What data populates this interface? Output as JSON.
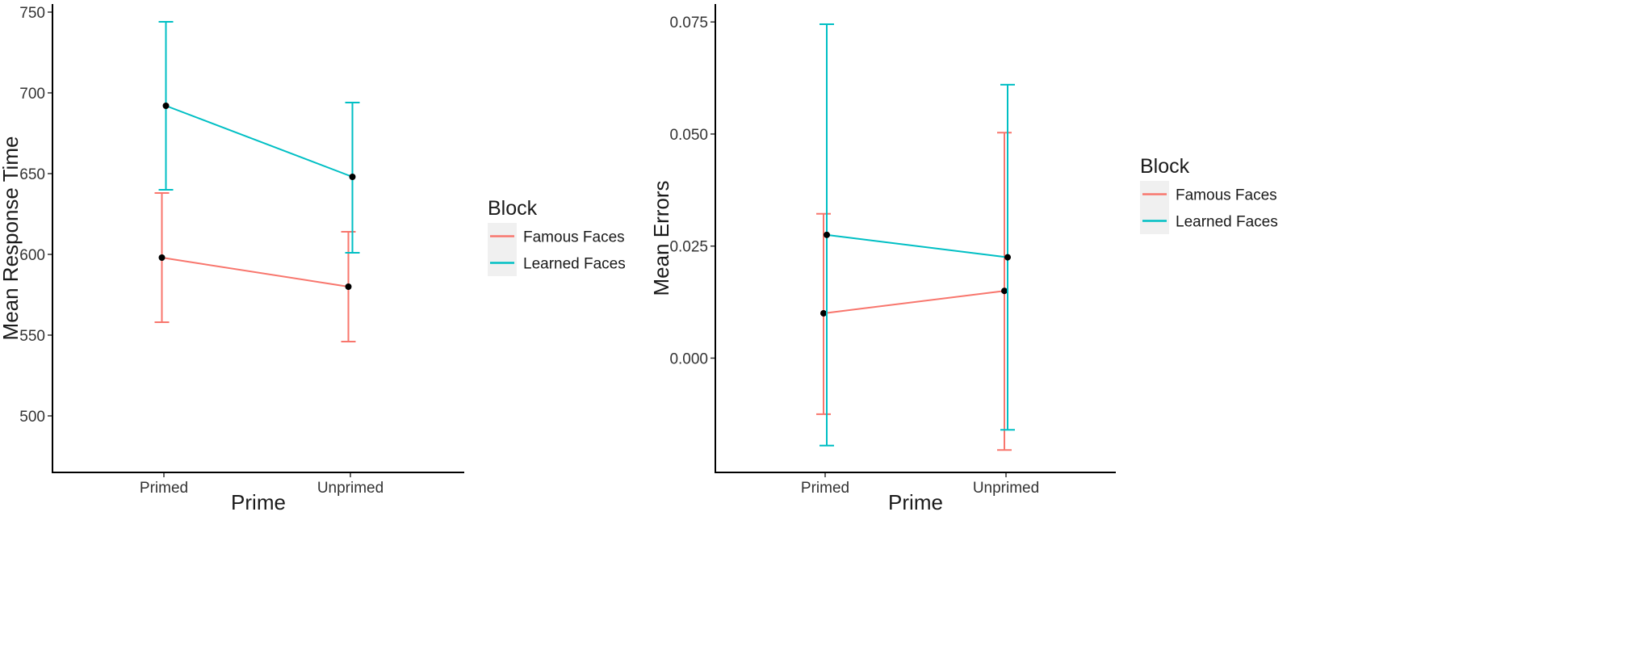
{
  "chart_data": [
    {
      "type": "line",
      "title": "",
      "xlabel": "Prime",
      "ylabel": "Mean Response Time",
      "categories": [
        "Primed",
        "Unprimed"
      ],
      "ylim": [
        465,
        755
      ],
      "yticks": [
        500,
        550,
        600,
        650,
        700,
        750
      ],
      "legend": {
        "title": "Block",
        "position": "right"
      },
      "series": [
        {
          "name": "Famous Faces",
          "color": "#F8766D",
          "values": [
            598,
            580
          ],
          "lower": [
            558,
            546
          ],
          "upper": [
            638,
            614
          ]
        },
        {
          "name": "Learned Faces",
          "color": "#00BFC4",
          "values": [
            692,
            648
          ],
          "lower": [
            640,
            601
          ],
          "upper": [
            744,
            694
          ]
        }
      ]
    },
    {
      "type": "line",
      "title": "",
      "xlabel": "Prime",
      "ylabel": "Mean Errors",
      "categories": [
        "Primed",
        "Unprimed"
      ],
      "ylim": [
        -0.0255,
        0.079
      ],
      "yticks": [
        "0.000",
        "0.025",
        "0.050",
        "0.075"
      ],
      "legend": {
        "title": "Block",
        "position": "right"
      },
      "series": [
        {
          "name": "Famous Faces",
          "color": "#F8766D",
          "values": [
            0.01,
            0.015
          ],
          "lower": [
            -0.0125,
            -0.0205
          ],
          "upper": [
            0.0322,
            0.0503
          ]
        },
        {
          "name": "Learned Faces",
          "color": "#00BFC4",
          "values": [
            0.0275,
            0.0225
          ],
          "lower": [
            -0.0195,
            -0.016
          ],
          "upper": [
            0.0745,
            0.061
          ]
        }
      ]
    }
  ]
}
